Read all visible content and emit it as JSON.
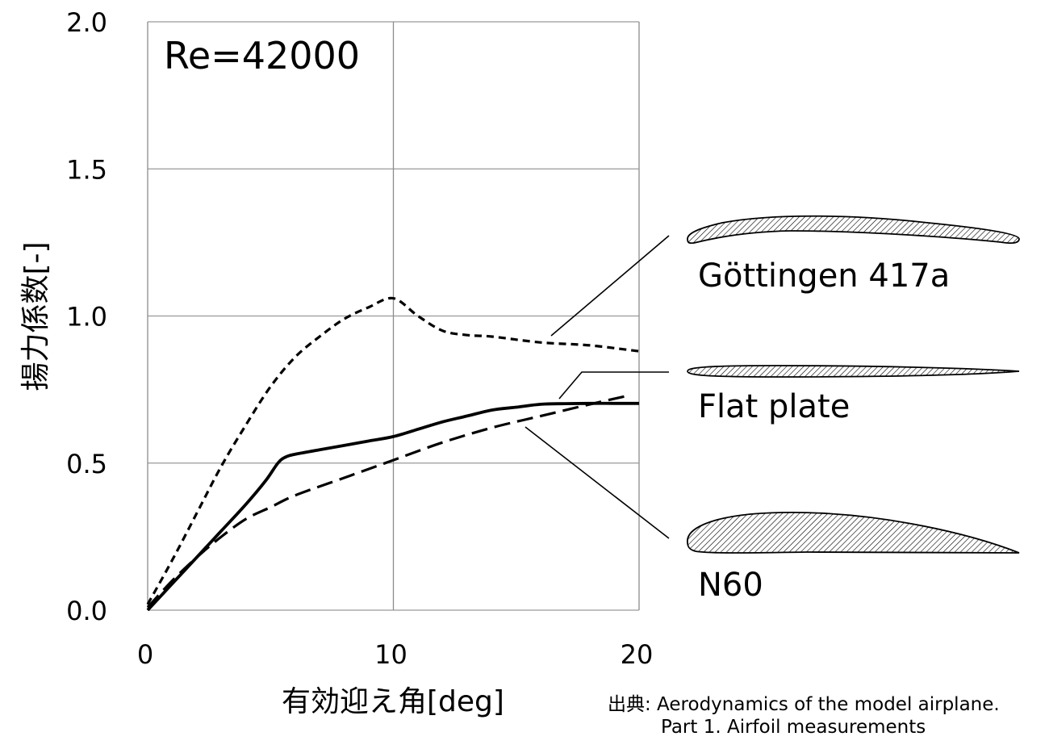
{
  "chart_data": {
    "type": "line",
    "title": "",
    "annotation": "Re=42000",
    "xlabel": "有効迎え角[deg]",
    "ylabel": "揚力係数[-]",
    "xlim": [
      0,
      20
    ],
    "ylim": [
      0,
      2.0
    ],
    "x_ticks": [
      0,
      10,
      20
    ],
    "x_tick_labels": [
      "0",
      "10",
      "20"
    ],
    "y_ticks": [
      0,
      0.5,
      1.0,
      1.5,
      2.0
    ],
    "y_tick_labels": [
      "0.0",
      "0.5",
      "1.0",
      "1.5",
      "2.0"
    ],
    "grid": true,
    "series": [
      {
        "name": "Göttingen 417a",
        "style": "short-dash",
        "x": [
          0,
          1,
          2,
          3,
          4,
          5,
          6,
          7,
          8,
          9,
          10,
          11,
          12,
          13,
          14,
          16,
          18,
          20
        ],
        "y": [
          0.02,
          0.17,
          0.33,
          0.49,
          0.63,
          0.76,
          0.86,
          0.93,
          0.99,
          1.03,
          1.06,
          1.0,
          0.95,
          0.935,
          0.93,
          0.91,
          0.9,
          0.88
        ]
      },
      {
        "name": "Flat plate",
        "style": "solid",
        "x": [
          0,
          1,
          2,
          3,
          4,
          4.8,
          5.3,
          5.6,
          6,
          7,
          8,
          9,
          10,
          11,
          12,
          13,
          14,
          15,
          16,
          17,
          18,
          19,
          20
        ],
        "y": [
          0.0,
          0.09,
          0.18,
          0.27,
          0.36,
          0.44,
          0.5,
          0.52,
          0.53,
          0.545,
          0.56,
          0.575,
          0.59,
          0.615,
          0.64,
          0.66,
          0.68,
          0.69,
          0.7,
          0.702,
          0.703,
          0.703,
          0.703
        ]
      },
      {
        "name": "N60",
        "style": "long-dash",
        "x": [
          0,
          1,
          2,
          3,
          4,
          5,
          6,
          8,
          10,
          12,
          14,
          16,
          18,
          19.6
        ],
        "y": [
          0.01,
          0.1,
          0.18,
          0.25,
          0.31,
          0.35,
          0.39,
          0.45,
          0.51,
          0.57,
          0.62,
          0.66,
          0.7,
          0.73
        ]
      }
    ],
    "legend": [
      {
        "label": "Göttingen 417a",
        "shape": "thin-cambered"
      },
      {
        "label": "Flat plate",
        "shape": "flat"
      },
      {
        "label": "N60",
        "shape": "thick-cambered"
      }
    ],
    "source": {
      "line1": "出典: Aerodynamics of the model airplane.",
      "line2": "Part 1. Airfoil measurements"
    },
    "colors": {
      "line": "#000000",
      "grid": "#9a9a9a",
      "axis": "#8c8c8c"
    }
  }
}
